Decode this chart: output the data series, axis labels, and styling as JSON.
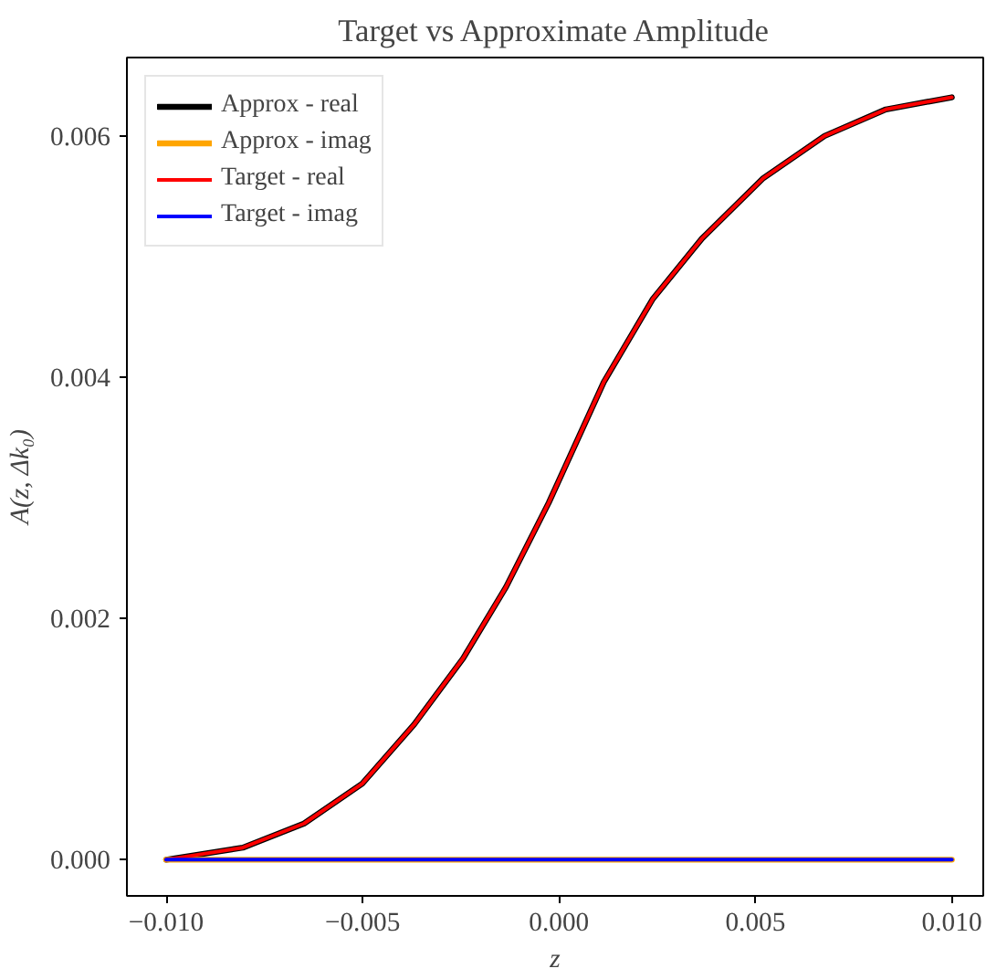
{
  "chart_data": {
    "type": "line",
    "title": "Target vs Approximate Amplitude",
    "xlabel": "z",
    "ylabel": "A(z, Δk₀)",
    "series": [
      {
        "name": "Approx - real",
        "color": "#000000",
        "x": [
          -0.01,
          -0.00805,
          -0.00649,
          -0.00501,
          -0.00369,
          -0.00244,
          -0.00135,
          -0.00026,
          0.00044,
          0.00114,
          0.00239,
          0.00364,
          0.0052,
          0.00676,
          0.00832,
          0.01
        ],
        "values": [
          0.0,
          0.0001,
          0.0003,
          0.00063,
          0.00112,
          0.00167,
          0.00226,
          0.00296,
          0.00346,
          0.00396,
          0.00465,
          0.00515,
          0.00565,
          0.006,
          0.00622,
          0.00632
        ]
      },
      {
        "name": "Approx - imag",
        "color": "#ffa500",
        "x": [
          -0.01,
          0.01
        ],
        "values": [
          0.0,
          0.0
        ]
      },
      {
        "name": "Target - real",
        "color": "#ff0000",
        "x": [
          -0.01,
          -0.00805,
          -0.00649,
          -0.00501,
          -0.00369,
          -0.00244,
          -0.00135,
          -0.00026,
          0.00044,
          0.00114,
          0.00239,
          0.00364,
          0.0052,
          0.00676,
          0.00832,
          0.01
        ],
        "values": [
          0.0,
          0.0001,
          0.0003,
          0.00063,
          0.00112,
          0.00167,
          0.00226,
          0.00296,
          0.00346,
          0.00396,
          0.00465,
          0.00515,
          0.00565,
          0.006,
          0.00622,
          0.00632
        ]
      },
      {
        "name": "Target - imag",
        "color": "#0000ff",
        "x": [
          -0.01,
          0.01
        ],
        "values": [
          0.0,
          0.0
        ]
      }
    ],
    "xlim": [
      -0.011,
      0.0108
    ],
    "ylim": [
      -0.0003,
      0.00665
    ],
    "xticks": [
      {
        "value": -0.01,
        "label": "−0.010"
      },
      {
        "value": -0.005,
        "label": "−0.005"
      },
      {
        "value": 0,
        "label": "0.000"
      },
      {
        "value": 0.005,
        "label": "0.005"
      },
      {
        "value": 0.01,
        "label": "0.010"
      }
    ],
    "yticks": [
      {
        "value": 0,
        "label": "0.000"
      },
      {
        "value": 0.002,
        "label": "0.002"
      },
      {
        "value": 0.004,
        "label": "0.004"
      },
      {
        "value": 0.006,
        "label": "0.006"
      }
    ],
    "legend": "top left",
    "grid": false,
    "line_style": "solid",
    "marker": "none"
  }
}
